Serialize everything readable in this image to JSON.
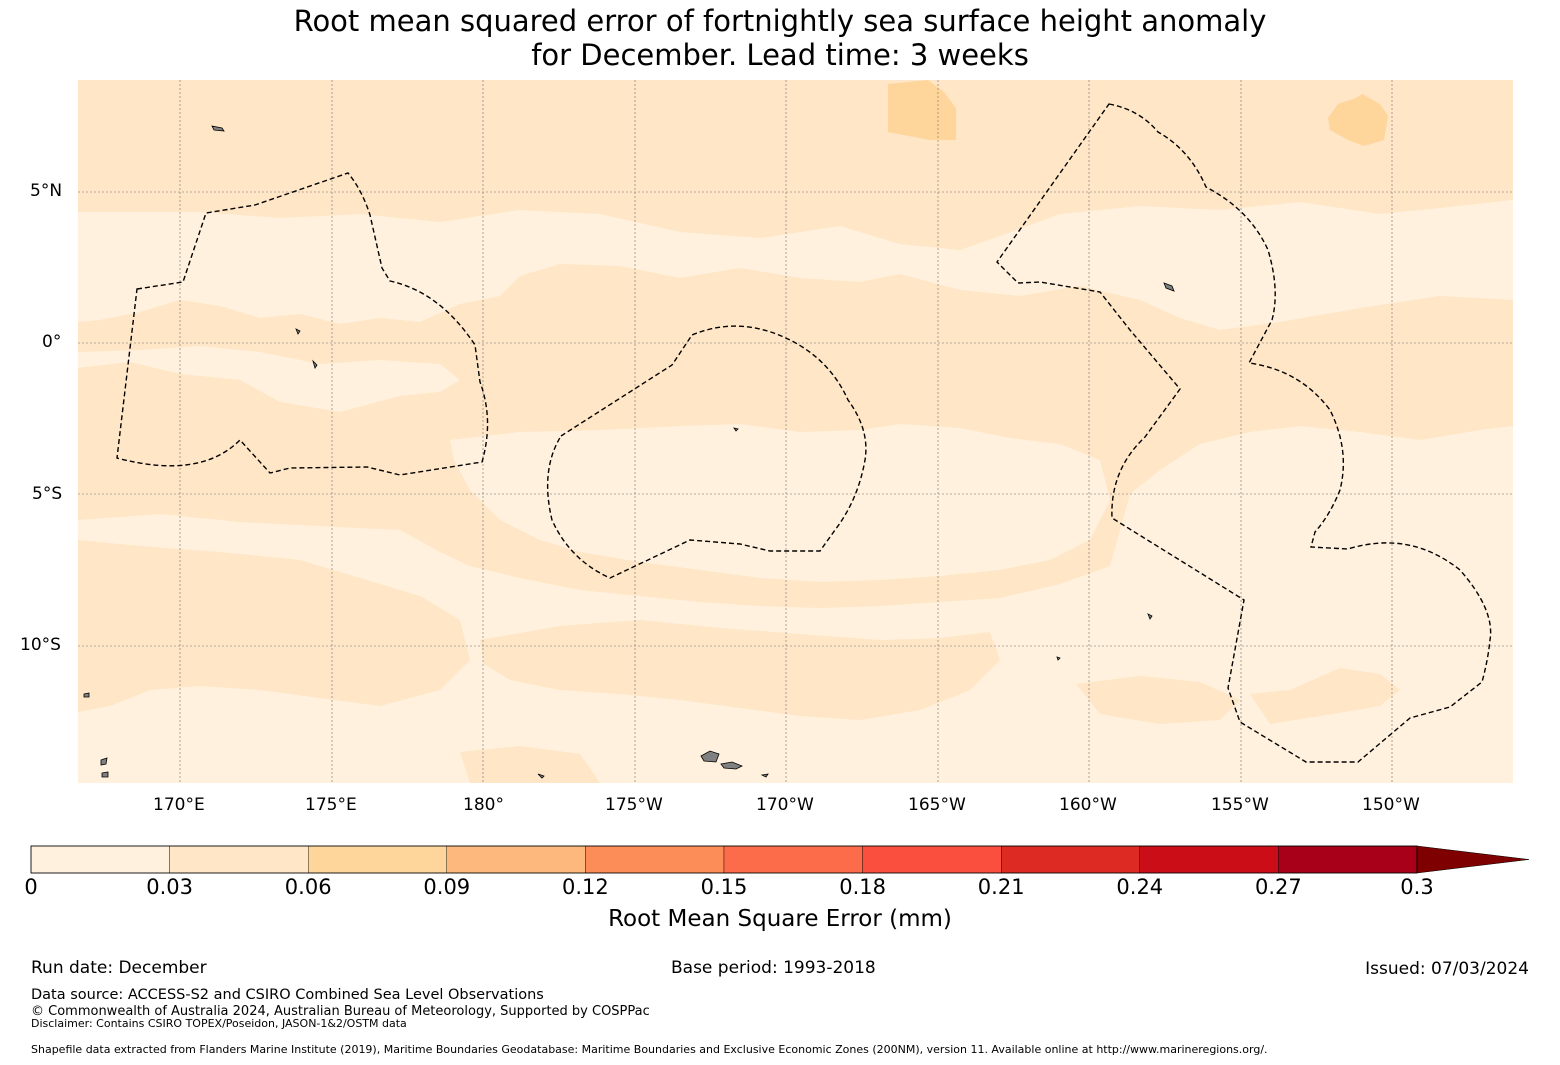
{
  "title": {
    "line1": "Root mean squared error of fortnightly sea surface height anomaly",
    "line2": "for December. Lead time: 3 weeks"
  },
  "map": {
    "lat_labels": [
      "5°N",
      "0°",
      "5°S",
      "10°S"
    ],
    "lon_labels": [
      "170°E",
      "175°E",
      "180°",
      "175°W",
      "170°W",
      "165°W",
      "160°W",
      "155°W",
      "150°W"
    ],
    "colors": {
      "bin1": "#fff1dd",
      "bin2": "#ffe6c6",
      "bin3": "#fed69c",
      "land": "#808080",
      "boundary": "#000000"
    }
  },
  "colorbar": {
    "ticks": [
      "0",
      "0.03",
      "0.06",
      "0.09",
      "0.12",
      "0.15",
      "0.18",
      "0.21",
      "0.24",
      "0.27",
      "0.3"
    ],
    "colors": [
      "#fff1dd",
      "#ffe6c6",
      "#fed69c",
      "#fdb87d",
      "#fc8d58",
      "#fc6b4a",
      "#fa4e3e",
      "#dd2b24",
      "#cb0d17",
      "#a90019",
      "#7f0000"
    ],
    "label": "Root Mean Square Error (mm)",
    "extend": "max"
  },
  "footer": {
    "run_date": "Run date: December",
    "base_period": "Base period: 1993-2018",
    "issued": "Issued: 07/03/2024",
    "data_source": "Data source: ACCESS-S2 and CSIRO Combined Sea Level Observations",
    "copyright": "© Commonwealth of Australia 2024, Australian Bureau of Meteorology, Supported by COSPPac",
    "disclaimer": "Disclaimer: Contains CSIRO TOPEX/Poseidon, JASON-1&2/OSTM data",
    "shapefile": "Shapefile data extracted from Flanders Marine Institute (2019), Maritime Boundaries Geodatabase: Maritime Boundaries and Exclusive Economic Zones (200NM), version 11. Available online at http://www.marineregions.org/."
  }
}
